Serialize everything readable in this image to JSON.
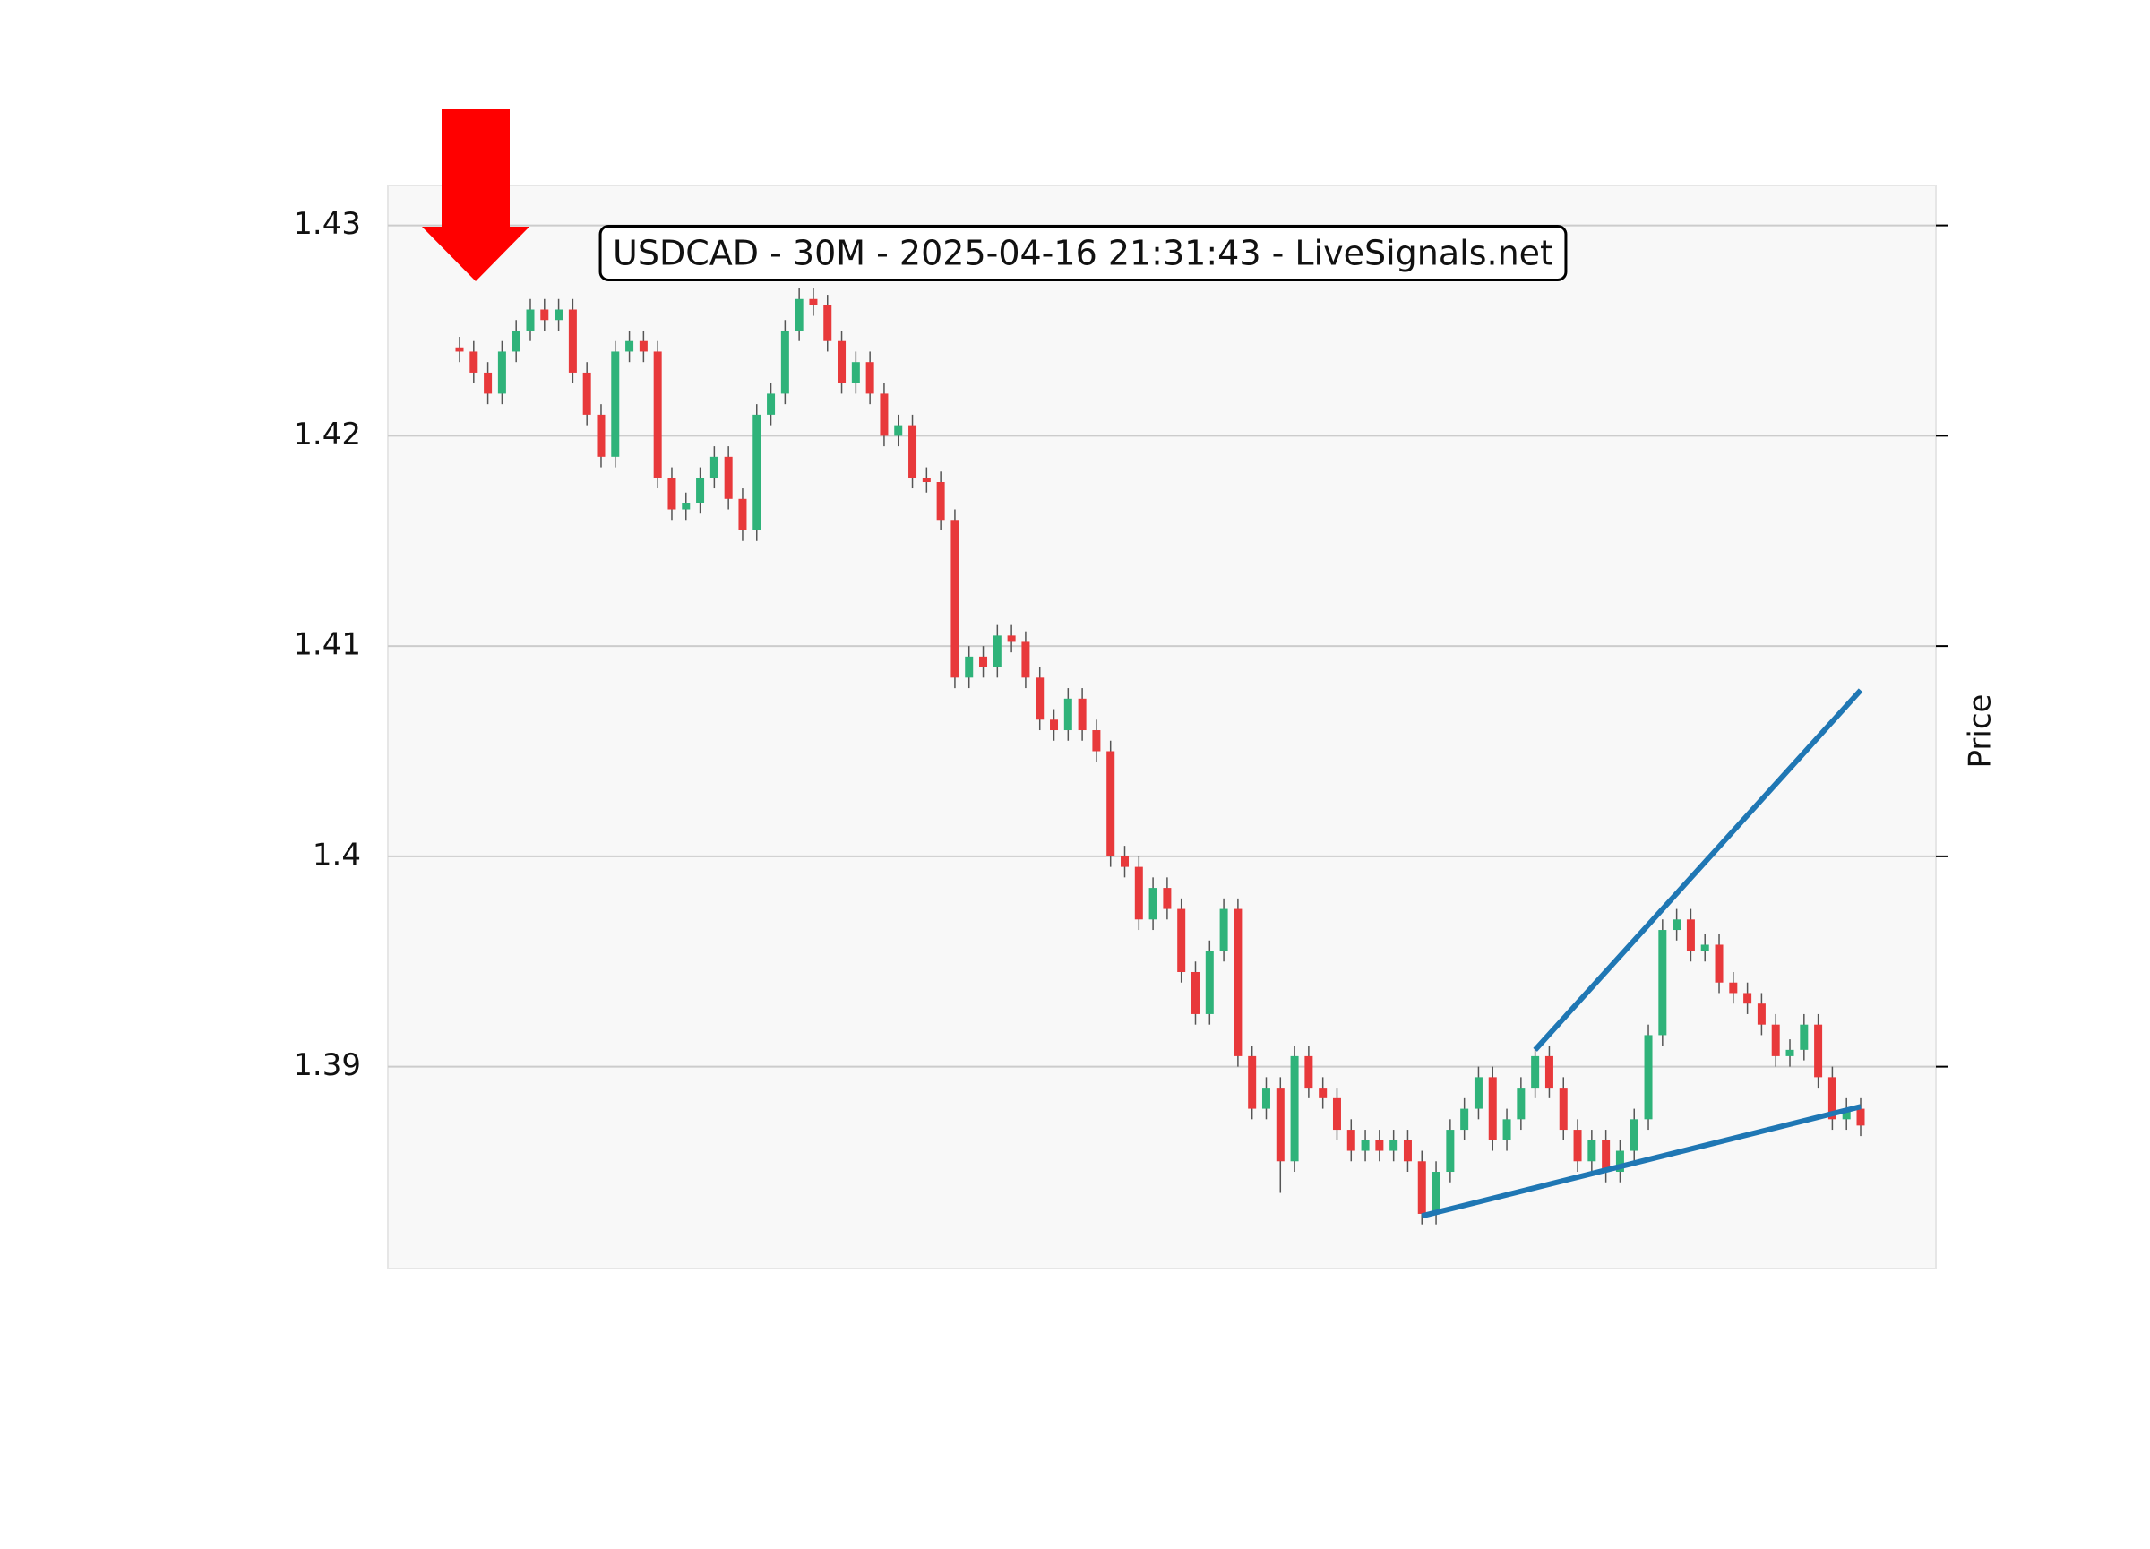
{
  "chart_data": {
    "type": "candlestick",
    "title": "USDCAD - 30M - 2025-04-16 21:31:43 - LiveSignals.net",
    "y_label": "Price",
    "up_color": "#2fb37a",
    "down_color": "#e8393b",
    "wick_color": "#555555",
    "ylim": [
      1.3804,
      1.4319
    ],
    "yticks": [
      1.39,
      1.4,
      1.41,
      1.42,
      1.43
    ],
    "grid": true,
    "open": [
      1.4242,
      1.424,
      1.423,
      1.422,
      1.424,
      1.425,
      1.426,
      1.4255,
      1.426,
      1.423,
      1.421,
      1.419,
      1.424,
      1.4245,
      1.424,
      1.418,
      1.4165,
      1.4168,
      1.418,
      1.419,
      1.417,
      1.4155,
      1.421,
      1.422,
      1.425,
      1.4265,
      1.4262,
      1.4245,
      1.4225,
      1.4235,
      1.422,
      1.42,
      1.4205,
      1.418,
      1.4178,
      1.416,
      1.4085,
      1.4095,
      1.409,
      1.4105,
      1.4102,
      1.4085,
      1.4065,
      1.406,
      1.4075,
      1.406,
      1.405,
      1.4,
      1.3995,
      1.397,
      1.3985,
      1.3975,
      1.3945,
      1.3925,
      1.3955,
      1.3975,
      1.3905,
      1.388,
      1.389,
      1.3855,
      1.3905,
      1.389,
      1.3885,
      1.387,
      1.386,
      1.3865,
      1.386,
      1.3865,
      1.3855,
      1.383,
      1.385,
      1.387,
      1.388,
      1.3895,
      1.3865,
      1.3875,
      1.389,
      1.3905,
      1.389,
      1.387,
      1.3855,
      1.3865,
      1.385,
      1.386,
      1.3875,
      1.3915,
      1.3965,
      1.397,
      1.3955,
      1.3958,
      1.394,
      1.3935,
      1.393,
      1.392,
      1.3905,
      1.3908,
      1.392,
      1.3895,
      1.3875,
      1.388
    ],
    "high": [
      1.4247,
      1.4245,
      1.4235,
      1.4245,
      1.4255,
      1.4265,
      1.4265,
      1.4265,
      1.4265,
      1.4235,
      1.4215,
      1.4245,
      1.425,
      1.425,
      1.4245,
      1.4185,
      1.4173,
      1.4185,
      1.4195,
      1.4195,
      1.4175,
      1.4215,
      1.4225,
      1.4255,
      1.427,
      1.427,
      1.4267,
      1.425,
      1.424,
      1.424,
      1.4225,
      1.421,
      1.421,
      1.4185,
      1.4183,
      1.4165,
      1.41,
      1.41,
      1.411,
      1.411,
      1.4107,
      1.409,
      1.407,
      1.408,
      1.408,
      1.4065,
      1.4055,
      1.4005,
      1.4,
      1.399,
      1.399,
      1.398,
      1.395,
      1.396,
      1.398,
      1.398,
      1.391,
      1.3895,
      1.3895,
      1.391,
      1.391,
      1.3895,
      1.389,
      1.3875,
      1.387,
      1.387,
      1.387,
      1.387,
      1.386,
      1.3855,
      1.3875,
      1.3885,
      1.39,
      1.39,
      1.388,
      1.3895,
      1.391,
      1.391,
      1.3895,
      1.3875,
      1.387,
      1.387,
      1.3865,
      1.388,
      1.392,
      1.397,
      1.3975,
      1.3975,
      1.3963,
      1.3963,
      1.3945,
      1.394,
      1.3935,
      1.3925,
      1.3913,
      1.3925,
      1.3925,
      1.39,
      1.3885,
      1.3885
    ],
    "low": [
      1.4235,
      1.4225,
      1.4215,
      1.4215,
      1.4235,
      1.4245,
      1.425,
      1.425,
      1.4225,
      1.4205,
      1.4185,
      1.4185,
      1.4235,
      1.4235,
      1.4175,
      1.416,
      1.416,
      1.4163,
      1.4175,
      1.4165,
      1.415,
      1.415,
      1.4205,
      1.4215,
      1.4245,
      1.4257,
      1.424,
      1.422,
      1.422,
      1.4215,
      1.4195,
      1.4195,
      1.4175,
      1.4173,
      1.4155,
      1.408,
      1.408,
      1.4085,
      1.4085,
      1.4097,
      1.408,
      1.406,
      1.4055,
      1.4055,
      1.4055,
      1.4045,
      1.3995,
      1.399,
      1.3965,
      1.3965,
      1.397,
      1.394,
      1.392,
      1.392,
      1.395,
      1.39,
      1.3875,
      1.3875,
      1.384,
      1.385,
      1.3885,
      1.388,
      1.3865,
      1.3855,
      1.3855,
      1.3855,
      1.3855,
      1.385,
      1.3825,
      1.3825,
      1.3845,
      1.3865,
      1.3875,
      1.386,
      1.386,
      1.387,
      1.3885,
      1.3885,
      1.3865,
      1.385,
      1.385,
      1.3845,
      1.3845,
      1.3855,
      1.387,
      1.391,
      1.396,
      1.395,
      1.395,
      1.3935,
      1.393,
      1.3925,
      1.3915,
      1.39,
      1.39,
      1.3903,
      1.389,
      1.387,
      1.387,
      1.3867
    ],
    "close": [
      1.424,
      1.423,
      1.422,
      1.424,
      1.425,
      1.426,
      1.4255,
      1.426,
      1.423,
      1.421,
      1.419,
      1.424,
      1.4245,
      1.424,
      1.418,
      1.4165,
      1.4168,
      1.418,
      1.419,
      1.417,
      1.4155,
      1.421,
      1.422,
      1.425,
      1.4265,
      1.4262,
      1.4245,
      1.4225,
      1.4235,
      1.422,
      1.42,
      1.4205,
      1.418,
      1.4178,
      1.416,
      1.4085,
      1.4095,
      1.409,
      1.4105,
      1.4102,
      1.4085,
      1.4065,
      1.406,
      1.4075,
      1.406,
      1.405,
      1.4,
      1.3995,
      1.397,
      1.3985,
      1.3975,
      1.3945,
      1.3925,
      1.3955,
      1.3975,
      1.3905,
      1.388,
      1.389,
      1.3855,
      1.3905,
      1.389,
      1.3885,
      1.387,
      1.386,
      1.3865,
      1.386,
      1.3865,
      1.3855,
      1.383,
      1.385,
      1.387,
      1.388,
      1.3895,
      1.3865,
      1.3875,
      1.389,
      1.3905,
      1.389,
      1.387,
      1.3855,
      1.3865,
      1.385,
      1.386,
      1.3875,
      1.3915,
      1.3965,
      1.397,
      1.3955,
      1.3958,
      1.394,
      1.3935,
      1.393,
      1.392,
      1.3905,
      1.3908,
      1.392,
      1.3895,
      1.3875,
      1.388,
      1.3872
    ],
    "lines": [
      {
        "color": "#1f77b4",
        "x": [
          68,
          99
        ],
        "y": [
          1.3829,
          1.3881
        ]
      },
      {
        "color": "#1f77b4",
        "x": [
          76,
          99
        ],
        "y": [
          1.3908,
          1.4079
        ]
      }
    ]
  }
}
